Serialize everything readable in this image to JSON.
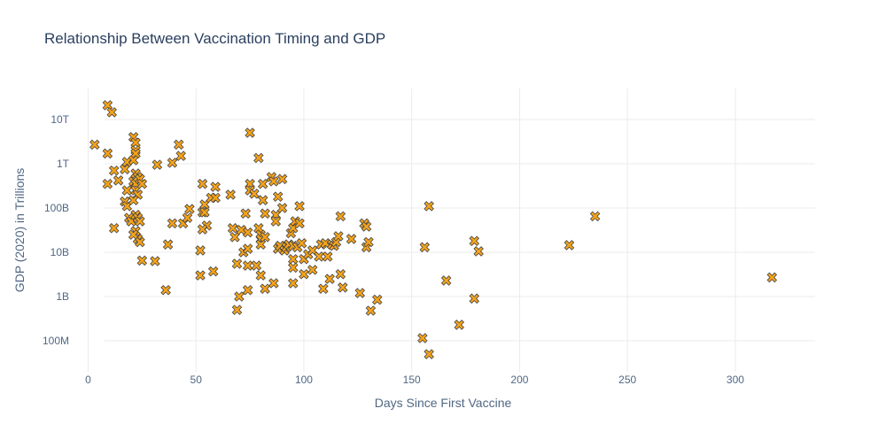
{
  "chart_data": {
    "type": "scatter",
    "title": "Relationship Between Vaccination Timing and GDP",
    "xlabel": "Days Since First Vaccine",
    "ylabel": "GDP (2020) in Trillions",
    "x_ticks": [
      0,
      50,
      100,
      150,
      200,
      250,
      300
    ],
    "xlim": [
      -8,
      337
    ],
    "y_scale": "log",
    "y_ticks": [
      {
        "value": 100000000,
        "label": "100M"
      },
      {
        "value": 1000000000,
        "label": "1B"
      },
      {
        "value": 10000000000,
        "label": "10B"
      },
      {
        "value": 100000000000,
        "label": "100B"
      },
      {
        "value": 1000000000000,
        "label": "1T"
      },
      {
        "value": 10000000000000,
        "label": "10T"
      }
    ],
    "ylim": [
      20000000,
      50000000000000
    ],
    "grid": true,
    "marker": {
      "symbol": "x",
      "color": "#f5a31a",
      "outline": "#444444"
    },
    "points": [
      [
        3,
        2700000000000.0
      ],
      [
        9,
        21000000000000.0
      ],
      [
        11,
        14500000000000.0
      ],
      [
        9,
        1700000000000.0
      ],
      [
        12,
        700000000000.0
      ],
      [
        9,
        350000000000.0
      ],
      [
        14,
        420000000000.0
      ],
      [
        12,
        35000000000.0
      ],
      [
        17,
        750000000000.0
      ],
      [
        18,
        1100000000000.0
      ],
      [
        17,
        140000000000.0
      ],
      [
        18,
        110000000000.0
      ],
      [
        18,
        250000000000.0
      ],
      [
        19,
        60000000000.0
      ],
      [
        20,
        50000000000.0
      ],
      [
        21,
        4000000000000.0
      ],
      [
        22,
        3000000000000.0
      ],
      [
        22,
        2000000000000.0
      ],
      [
        22,
        1700000000000.0
      ],
      [
        21,
        1200000000000.0
      ],
      [
        22,
        600000000000.0
      ],
      [
        23,
        500000000000.0
      ],
      [
        21,
        400000000000.0
      ],
      [
        22,
        350000000000.0
      ],
      [
        22,
        250000000000.0
      ],
      [
        23,
        200000000000.0
      ],
      [
        21,
        150000000000.0
      ],
      [
        24,
        450000000000.0
      ],
      [
        25,
        350000000000.0
      ],
      [
        22,
        70000000000.0
      ],
      [
        23,
        60000000000.0
      ],
      [
        24,
        50000000000.0
      ],
      [
        22,
        30000000000.0
      ],
      [
        23,
        20000000000.0
      ],
      [
        21,
        25000000000.0
      ],
      [
        24,
        17000000000.0
      ],
      [
        25,
        6500000000.0
      ],
      [
        31,
        6300000000.0
      ],
      [
        32,
        950000000000.0
      ],
      [
        36,
        1400000000.0
      ],
      [
        37,
        15000000000.0
      ],
      [
        39,
        1050000000000.0
      ],
      [
        39,
        45000000000.0
      ],
      [
        42,
        2700000000000.0
      ],
      [
        43,
        1500000000000.0
      ],
      [
        44,
        45000000000.0
      ],
      [
        46,
        60000000000.0
      ],
      [
        47,
        95000000000.0
      ],
      [
        52,
        11000000000.0
      ],
      [
        52,
        3000000000.0
      ],
      [
        53,
        350000000000.0
      ],
      [
        53,
        80000000000.0
      ],
      [
        54,
        120000000000.0
      ],
      [
        54,
        80000000000.0
      ],
      [
        55,
        40000000000.0
      ],
      [
        53,
        33000000000.0
      ],
      [
        57,
        170000000000.0
      ],
      [
        58,
        3700000000.0
      ],
      [
        59,
        300000000000.0
      ],
      [
        59,
        170000000000.0
      ],
      [
        66,
        200000000000.0
      ],
      [
        67,
        35000000000.0
      ],
      [
        68,
        22000000000.0
      ],
      [
        69,
        5500000000.0
      ],
      [
        70,
        1000000000.0
      ],
      [
        69,
        500000000.0
      ],
      [
        71,
        32000000000.0
      ],
      [
        72,
        10000000000.0
      ],
      [
        73,
        75000000000.0
      ],
      [
        74,
        28000000000.0
      ],
      [
        74,
        12000000000.0
      ],
      [
        74,
        5000000000.0
      ],
      [
        74,
        1400000000.0
      ],
      [
        75,
        5000000000000.0
      ],
      [
        75,
        350000000000.0
      ],
      [
        75,
        250000000000.0
      ],
      [
        77,
        210000000000.0
      ],
      [
        78,
        5000000000.0
      ],
      [
        79,
        1350000000000.0
      ],
      [
        79,
        35000000000.0
      ],
      [
        80,
        25000000000.0
      ],
      [
        80,
        20000000000.0
      ],
      [
        80,
        15000000000.0
      ],
      [
        81,
        350000000000.0
      ],
      [
        81,
        150000000000.0
      ],
      [
        82,
        75000000000.0
      ],
      [
        82,
        22000000000.0
      ],
      [
        82,
        1500000000.0
      ],
      [
        80,
        3000000000.0
      ],
      [
        85,
        500000000000.0
      ],
      [
        86,
        400000000000.0
      ],
      [
        87,
        70000000000.0
      ],
      [
        87,
        50000000000.0
      ],
      [
        88,
        180000000000.0
      ],
      [
        88,
        12000000000.0
      ],
      [
        86,
        2000000000.0
      ],
      [
        89,
        14000000000.0
      ],
      [
        90,
        100000000000.0
      ],
      [
        90,
        450000000000.0
      ],
      [
        91,
        11000000000.0
      ],
      [
        92,
        13000000000.0
      ],
      [
        93,
        15000000000.0
      ],
      [
        94,
        27000000000.0
      ],
      [
        95,
        35000000000.0
      ],
      [
        95,
        14000000000.0
      ],
      [
        95,
        7000000000.0
      ],
      [
        95,
        4500000000.0
      ],
      [
        95,
        2000000000.0
      ],
      [
        96,
        50000000000.0
      ],
      [
        97,
        13000000000.0
      ],
      [
        98,
        110000000000.0
      ],
      [
        98,
        45000000000.0
      ],
      [
        99,
        16000000000.0
      ],
      [
        100,
        7000000000.0
      ],
      [
        100,
        3200000000.0
      ],
      [
        102,
        9000000000.0
      ],
      [
        104,
        4000000000.0
      ],
      [
        104,
        11000000000.0
      ],
      [
        107,
        8000000000.0
      ],
      [
        108,
        15000000000.0
      ],
      [
        109,
        1500000000.0
      ],
      [
        110,
        16000000000.0
      ],
      [
        111,
        8000000000.0
      ],
      [
        112,
        2500000000.0
      ],
      [
        113,
        15000000000.0
      ],
      [
        114,
        14000000000.0
      ],
      [
        115,
        17000000000.0
      ],
      [
        116,
        23000000000.0
      ],
      [
        117,
        65000000000.0
      ],
      [
        117,
        3200000000.0
      ],
      [
        118,
        1600000000.0
      ],
      [
        122,
        20000000000.0
      ],
      [
        126,
        1200000000.0
      ],
      [
        128,
        45000000000.0
      ],
      [
        129,
        38000000000.0
      ],
      [
        129,
        13000000000.0
      ],
      [
        130,
        17000000000.0
      ],
      [
        131,
        480000000.0
      ],
      [
        134,
        850000000.0
      ],
      [
        155,
        115000000.0
      ],
      [
        156,
        13000000000.0
      ],
      [
        158,
        50000000.0
      ],
      [
        158,
        110000000000.0
      ],
      [
        166,
        2300000000.0
      ],
      [
        172,
        230000000.0
      ],
      [
        179,
        18000000000.0
      ],
      [
        179,
        900000000.0
      ],
      [
        181,
        10500000000.0
      ],
      [
        223,
        14500000000.0
      ],
      [
        235,
        65000000000.0
      ],
      [
        317,
        2700000000.0
      ]
    ]
  }
}
